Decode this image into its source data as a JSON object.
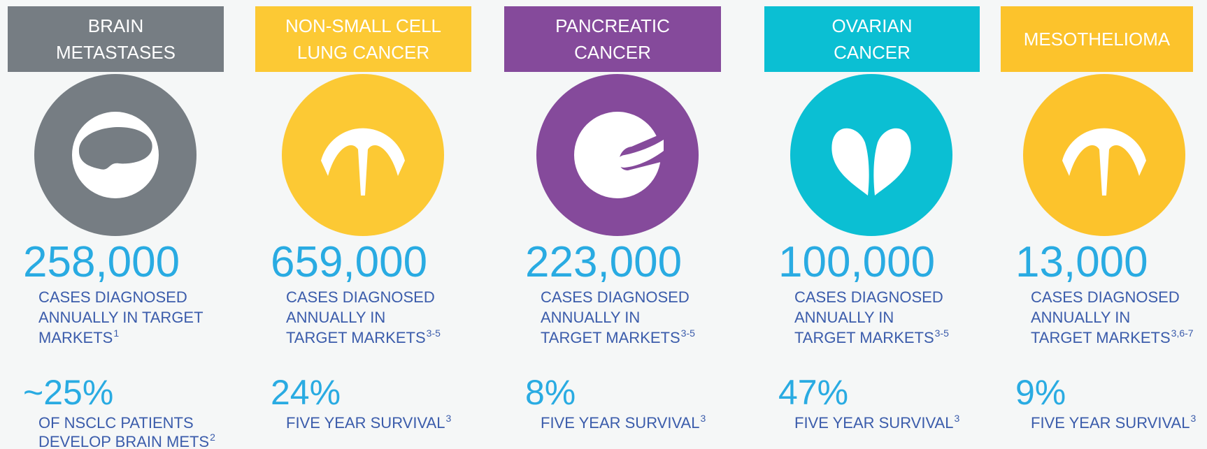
{
  "columns": [
    {
      "header": [
        "BRAIN",
        "METASTASES"
      ],
      "color": "#767d83",
      "count": "258,000",
      "count_label": [
        "CASES DIAGNOSED",
        "ANNUALLY IN TARGET",
        "MARKETS"
      ],
      "count_ref": "1",
      "stat": "~25%",
      "stat_label": [
        "OF NSCLC PATIENTS",
        "DEVELOP BRAIN METS"
      ],
      "stat_ref": "2"
    },
    {
      "header": [
        "NON-SMALL CELL",
        "LUNG CANCER"
      ],
      "color": "#fcc934",
      "count": "659,000",
      "count_label": [
        "CASES DIAGNOSED",
        "ANNUALLY IN",
        "TARGET MARKETS"
      ],
      "count_ref": "3-5",
      "stat": "24%",
      "stat_label": [
        "FIVE YEAR SURVIVAL"
      ],
      "stat_ref": "3"
    },
    {
      "header": [
        "PANCREATIC",
        "CANCER"
      ],
      "color": "#854a9b",
      "count": "223,000",
      "count_label": [
        "CASES DIAGNOSED",
        "ANNUALLY IN",
        "TARGET MARKETS"
      ],
      "count_ref": "3-5",
      "stat": "8%",
      "stat_label": [
        "FIVE YEAR SURVIVAL"
      ],
      "stat_ref": "3"
    },
    {
      "header": [
        "OVARIAN",
        "CANCER"
      ],
      "color": "#0bbfd3",
      "count": "100,000",
      "count_label": [
        "CASES DIAGNOSED",
        "ANNUALLY IN",
        "TARGET MARKETS"
      ],
      "count_ref": "3-5",
      "stat": "47%",
      "stat_label": [
        "FIVE YEAR SURVIVAL"
      ],
      "stat_ref": "3"
    },
    {
      "header": [
        "MESOTHELIOMA"
      ],
      "color": "#fcc32c",
      "count": "13,000",
      "count_label": [
        "CASES DIAGNOSED",
        "ANNUALLY IN",
        "TARGET MARKETS"
      ],
      "count_ref": "3,6-7",
      "stat": "9%",
      "stat_label": [
        "FIVE YEAR SURVIVAL"
      ],
      "stat_ref": "3"
    }
  ]
}
